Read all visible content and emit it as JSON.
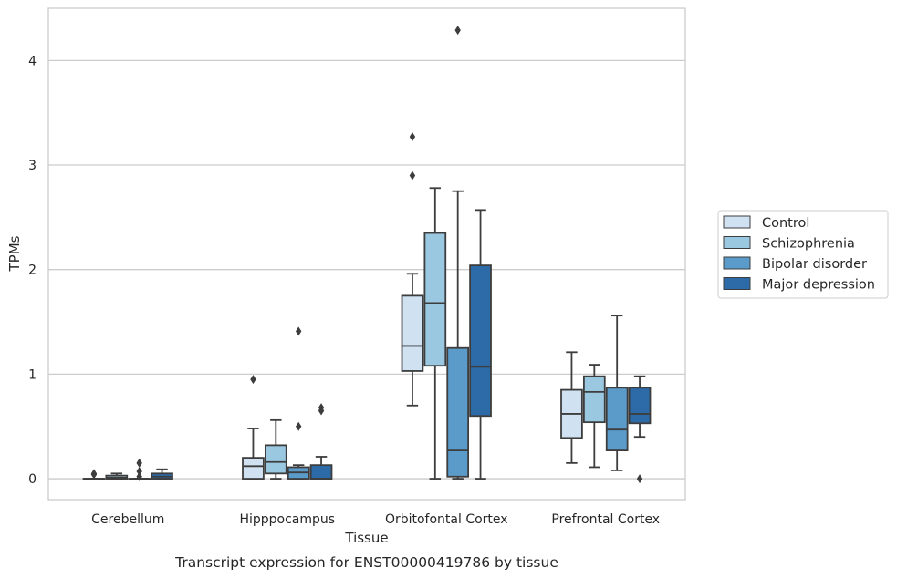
{
  "caption": "Transcript expression for ENST00000419786 by tissue",
  "chart_data": {
    "type": "box",
    "xlabel": "Tissue",
    "ylabel": "TPMs",
    "ylim": [
      -0.2,
      4.5
    ],
    "yticks": [
      0,
      1,
      2,
      3,
      4
    ],
    "grid": "horizontal",
    "legend_position": "right",
    "categories": [
      "Cerebellum",
      "Hipppocampus",
      "Orbitofontal Cortex",
      "Prefrontal Cortex"
    ],
    "series": [
      {
        "name": "Control",
        "color": "#d0e1f2",
        "boxes": [
          {
            "whisker_low": 0.0,
            "q1": 0.0,
            "median": 0.0,
            "q3": 0.0,
            "whisker_high": 0.0,
            "outliers": [
              0.04,
              0.05
            ]
          },
          {
            "whisker_low": 0.0,
            "q1": 0.0,
            "median": 0.12,
            "q3": 0.2,
            "whisker_high": 0.48,
            "outliers": [
              0.95
            ]
          },
          {
            "whisker_low": 0.7,
            "q1": 1.03,
            "median": 1.27,
            "q3": 1.75,
            "whisker_high": 1.96,
            "outliers": [
              2.9,
              3.27
            ]
          },
          {
            "whisker_low": 0.15,
            "q1": 0.39,
            "median": 0.62,
            "q3": 0.85,
            "whisker_high": 1.21,
            "outliers": []
          }
        ]
      },
      {
        "name": "Schizophrenia",
        "color": "#9ac8e0",
        "boxes": [
          {
            "whisker_low": 0.0,
            "q1": 0.0,
            "median": 0.01,
            "q3": 0.03,
            "whisker_high": 0.05,
            "outliers": []
          },
          {
            "whisker_low": 0.0,
            "q1": 0.05,
            "median": 0.16,
            "q3": 0.32,
            "whisker_high": 0.56,
            "outliers": []
          },
          {
            "whisker_low": 0.0,
            "q1": 1.08,
            "median": 1.68,
            "q3": 2.35,
            "whisker_high": 2.78,
            "outliers": []
          },
          {
            "whisker_low": 0.11,
            "q1": 0.54,
            "median": 0.83,
            "q3": 0.98,
            "whisker_high": 1.09,
            "outliers": []
          }
        ]
      },
      {
        "name": "Bipolar disorder",
        "color": "#5a9bc9",
        "boxes": [
          {
            "whisker_low": 0.0,
            "q1": 0.0,
            "median": 0.0,
            "q3": 0.0,
            "whisker_high": 0.0,
            "outliers": [
              0.02,
              0.07,
              0.15
            ]
          },
          {
            "whisker_low": 0.0,
            "q1": 0.0,
            "median": 0.06,
            "q3": 0.11,
            "whisker_high": 0.13,
            "outliers": [
              0.5,
              1.41
            ]
          },
          {
            "whisker_low": 0.0,
            "q1": 0.02,
            "median": 0.27,
            "q3": 1.25,
            "whisker_high": 2.75,
            "outliers": [
              4.29
            ]
          },
          {
            "whisker_low": 0.08,
            "q1": 0.27,
            "median": 0.47,
            "q3": 0.87,
            "whisker_high": 1.56,
            "outliers": []
          }
        ]
      },
      {
        "name": "Major depression",
        "color": "#2c6ba8",
        "boxes": [
          {
            "whisker_low": 0.0,
            "q1": 0.0,
            "median": 0.02,
            "q3": 0.05,
            "whisker_high": 0.09,
            "outliers": []
          },
          {
            "whisker_low": 0.0,
            "q1": 0.0,
            "median": 0.0,
            "q3": 0.13,
            "whisker_high": 0.21,
            "outliers": [
              0.65,
              0.68
            ]
          },
          {
            "whisker_low": 0.0,
            "q1": 0.6,
            "median": 1.07,
            "q3": 2.04,
            "whisker_high": 2.57,
            "outliers": []
          },
          {
            "whisker_low": 0.4,
            "q1": 0.53,
            "median": 0.62,
            "q3": 0.87,
            "whisker_high": 0.98,
            "outliers": [
              0.0
            ]
          }
        ]
      }
    ]
  }
}
